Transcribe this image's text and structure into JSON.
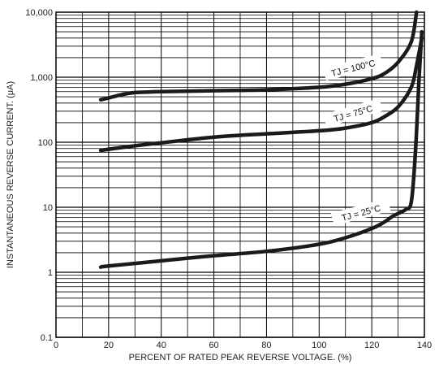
{
  "chart_data": {
    "type": "line",
    "title": "",
    "xlabel": "PERCENT OF RATED PEAK REVERSE VOLTAGE. (%)",
    "ylabel": "INSTANTANEOUS REVERSE CURRENT. (μA)",
    "xlim": [
      0,
      140
    ],
    "ylim": [
      0.1,
      10000
    ],
    "yscale": "log",
    "grid": true,
    "x_ticks": [
      "0",
      "20",
      "40",
      "60",
      "80",
      "100",
      "120",
      "140"
    ],
    "y_ticks": [
      "0.1",
      "1",
      "10",
      "100",
      "1,000",
      "10,000"
    ],
    "series": [
      {
        "name": "TJ = 100°C",
        "x": [
          17,
          20,
          25,
          30,
          40,
          60,
          80,
          100,
          110,
          120,
          125,
          130,
          135,
          137
        ],
        "y": [
          450,
          480,
          540,
          580,
          600,
          620,
          640,
          700,
          780,
          950,
          1150,
          1700,
          3500,
          10000
        ]
      },
      {
        "name": "TJ = 75°C",
        "x": [
          17,
          20,
          30,
          40,
          60,
          80,
          100,
          110,
          120,
          125,
          130,
          135,
          137,
          139
        ],
        "y": [
          75,
          78,
          88,
          98,
          120,
          135,
          150,
          165,
          200,
          250,
          350,
          700,
          1500,
          4000
        ]
      },
      {
        "name": "TJ = 25°C",
        "x": [
          17,
          20,
          40,
          60,
          80,
          100,
          110,
          120,
          125,
          128,
          131,
          133,
          135,
          136.5,
          138,
          139
        ],
        "y": [
          1.2,
          1.25,
          1.5,
          1.8,
          2.1,
          2.7,
          3.4,
          4.7,
          6.0,
          7.3,
          8.4,
          9.3,
          12,
          60,
          1000,
          5000
        ]
      }
    ]
  }
}
